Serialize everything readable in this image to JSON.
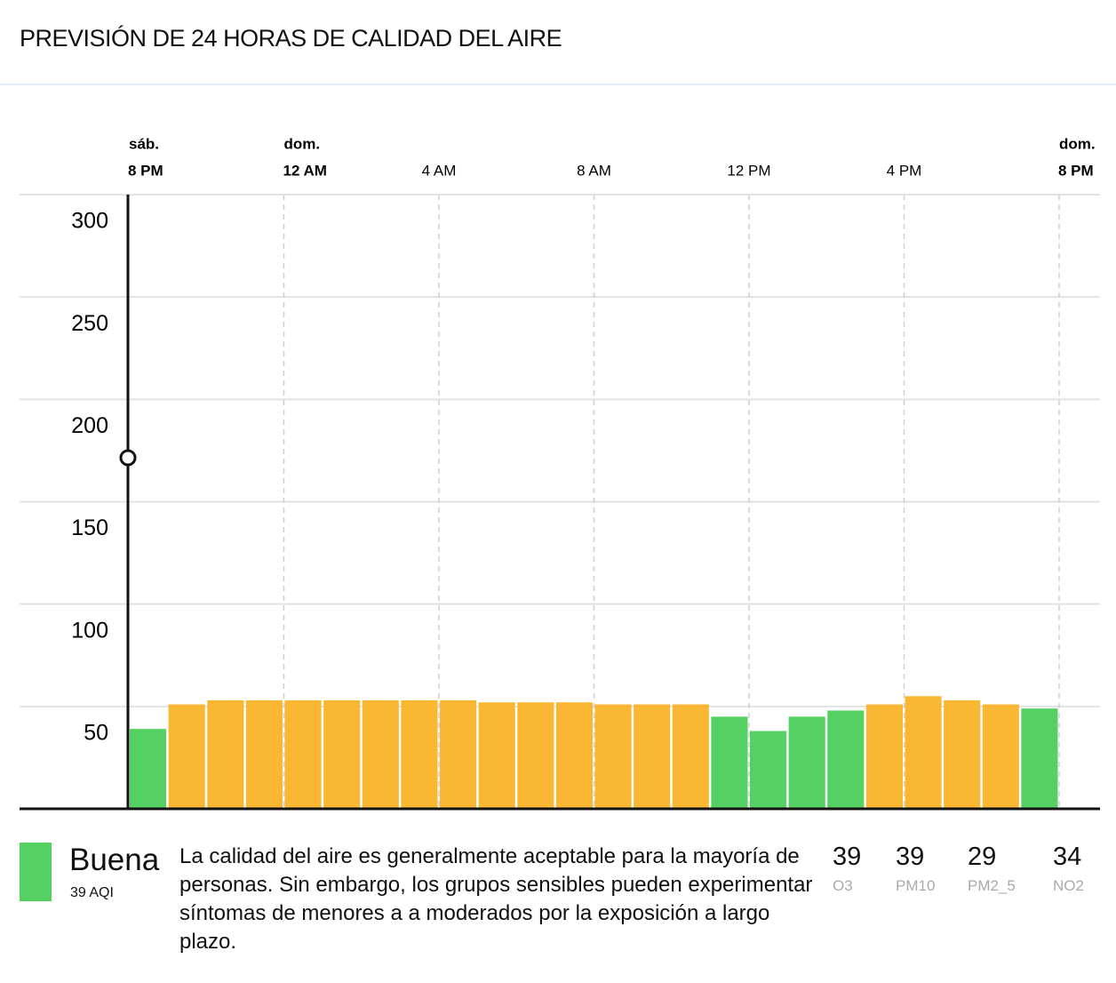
{
  "header": {
    "title": "PREVISIÓN DE 24 HORAS DE CALIDAD DEL AIRE"
  },
  "chart_data": {
    "type": "bar",
    "xlim": [
      0,
      24
    ],
    "xticks": [
      {
        "value": 0,
        "label": "8 PM",
        "day": "sáb."
      },
      {
        "value": 4,
        "label": "12 AM",
        "day": "dom."
      },
      {
        "value": 8,
        "label": "4 AM"
      },
      {
        "value": 12,
        "label": "8 AM"
      },
      {
        "value": 16,
        "label": "12 PM"
      },
      {
        "value": 20,
        "label": "4 PM"
      },
      {
        "value": 24,
        "label": "8 PM",
        "day": "dom."
      }
    ],
    "values": [
      39,
      51,
      53,
      53,
      53,
      53,
      53,
      53,
      53,
      52,
      52,
      52,
      51,
      51,
      51,
      45,
      38,
      45,
      48,
      51,
      55,
      53,
      51,
      49
    ],
    "colors": [
      "#55d163",
      "#f9b733",
      "#f9b733",
      "#f9b733",
      "#f9b733",
      "#f9b733",
      "#f9b733",
      "#f9b733",
      "#f9b733",
      "#f9b733",
      "#f9b733",
      "#f9b733",
      "#f9b733",
      "#f9b733",
      "#f9b733",
      "#55d163",
      "#55d163",
      "#55d163",
      "#55d163",
      "#f9b733",
      "#f9b733",
      "#f9b733",
      "#f9b733",
      "#55d163"
    ],
    "ylim": [
      0,
      300
    ],
    "yticks": [
      50,
      100,
      150,
      200,
      250,
      300
    ],
    "grid": true
  },
  "summary": {
    "category": "Buena",
    "color": "#55d163",
    "aqi": "39 AQI",
    "description": "La calidad del aire es generalmente aceptable para la mayoría de personas. Sin embargo, los grupos sensibles pueden experimentar síntomas de menores a a moderados por la exposición a largo plazo.",
    "pollutants": [
      {
        "value": 39,
        "name": "O3"
      },
      {
        "value": 39,
        "name": "PM10"
      },
      {
        "value": 29,
        "name": "PM2_5"
      },
      {
        "value": 34,
        "name": "NO2"
      }
    ]
  }
}
